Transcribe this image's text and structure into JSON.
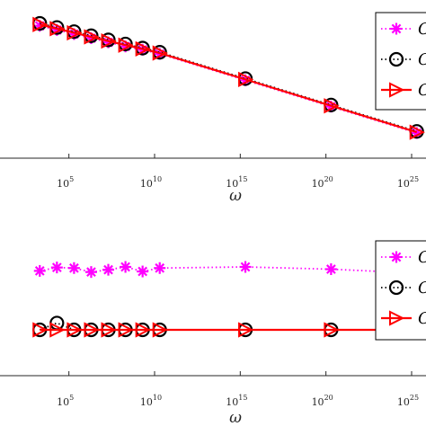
{
  "chart_data": [
    {
      "type": "line",
      "xlabel": "ω",
      "x_scale": "log",
      "x_tick_exponents": [
        5,
        10,
        15,
        20,
        25
      ],
      "x_tick_base": "10",
      "grid": false,
      "legend": {
        "placement": "top-right",
        "entries": [
          "C",
          "C",
          "C"
        ]
      },
      "series": [
        {
          "marker": "asterisk",
          "line": "dotted",
          "color": "#ff00ff",
          "x_exp": [
            3.3,
            4.3,
            5.3,
            6.3,
            7.3,
            8.3,
            9.3,
            10.3,
            15.3,
            20.3,
            25.3
          ],
          "y": [
            0.8,
            0.775,
            0.75,
            0.725,
            0.7,
            0.675,
            0.655,
            0.63,
            0.47,
            0.31,
            0.15
          ]
        },
        {
          "marker": "circle",
          "line": "dotted",
          "color": "#000000",
          "x_exp": [
            3.3,
            4.3,
            5.3,
            6.3,
            7.3,
            8.3,
            9.3,
            10.3,
            15.3,
            20.3,
            25.3
          ],
          "y": [
            0.815,
            0.79,
            0.765,
            0.74,
            0.715,
            0.69,
            0.665,
            0.64,
            0.48,
            0.32,
            0.16
          ]
        },
        {
          "marker": "triangle-right",
          "line": "solid",
          "color": "#ff0000",
          "x_exp": [
            3.3,
            4.3,
            5.3,
            6.3,
            7.3,
            8.3,
            9.3,
            10.3,
            15.3,
            20.3,
            25.3
          ],
          "y": [
            0.808,
            0.783,
            0.758,
            0.733,
            0.708,
            0.683,
            0.66,
            0.635,
            0.475,
            0.315,
            0.155
          ]
        }
      ]
    },
    {
      "type": "line",
      "xlabel": "ω",
      "x_scale": "log",
      "x_tick_exponents": [
        5,
        10,
        15,
        20,
        25
      ],
      "x_tick_base": "10",
      "grid": false,
      "legend": {
        "placement": "top-right",
        "entries": [
          "C",
          "C",
          "C"
        ]
      },
      "series": [
        {
          "marker": "asterisk",
          "line": "dotted",
          "color": "#ff00ff",
          "x_exp": [
            3.3,
            4.3,
            5.3,
            6.3,
            7.3,
            8.3,
            9.3,
            10.3,
            15.3,
            20.3,
            25.3
          ],
          "y": [
            0.52,
            0.55,
            0.545,
            0.51,
            0.53,
            0.555,
            0.515,
            0.545,
            0.555,
            0.535,
            0.5
          ]
        },
        {
          "marker": "circle",
          "line": "dotted",
          "color": "#000000",
          "x_exp": [
            3.3,
            4.3,
            5.3,
            6.3,
            7.3,
            8.3,
            9.3,
            10.3,
            15.3,
            20.3,
            25.3
          ],
          "y": [
            0.0,
            0.06,
            0.0,
            0.0,
            0.0,
            0.0,
            0.0,
            0.0,
            0.0,
            0.0,
            0.0
          ]
        },
        {
          "marker": "triangle-right",
          "line": "solid",
          "color": "#ff0000",
          "x_exp": [
            3.3,
            4.3,
            5.3,
            6.3,
            7.3,
            8.3,
            9.3,
            10.3,
            15.3,
            20.3,
            25.3
          ],
          "y": [
            0.0,
            0.0,
            0.0,
            0.0,
            0.0,
            0.0,
            0.0,
            0.0,
            0.0,
            0.0,
            0.0
          ]
        }
      ]
    }
  ]
}
